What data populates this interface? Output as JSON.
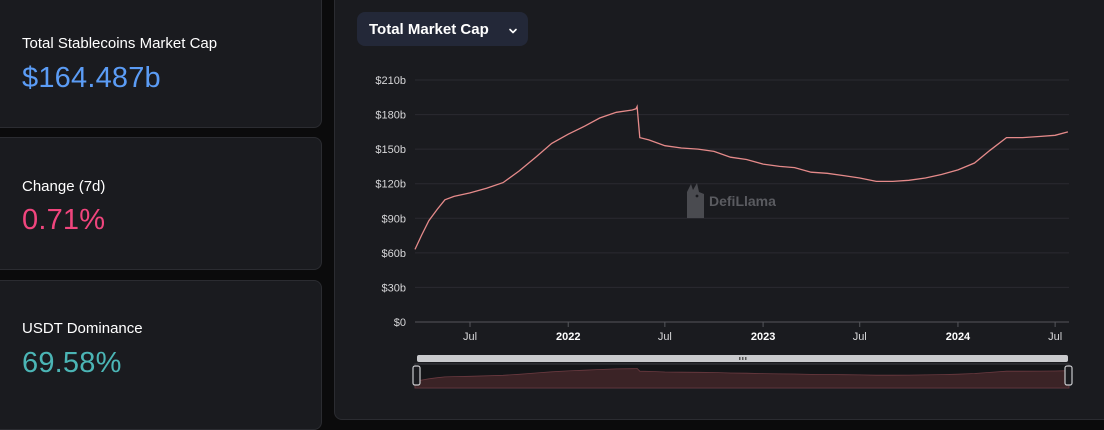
{
  "stats": [
    {
      "label": "Total Stablecoins Market Cap",
      "value": "$164.487b",
      "color": "#5b9cf5"
    },
    {
      "label": "Change (7d)",
      "value": "0.71%",
      "color": "#f0457d"
    },
    {
      "label": "USDT Dominance",
      "value": "69.58%",
      "color": "#4bb5b5"
    }
  ],
  "dropdown": {
    "label": "Total Market Cap",
    "icon": "chevron-down-icon"
  },
  "watermark": {
    "text": "DefiLlama",
    "icon": "llama-logo-icon"
  },
  "colors": {
    "line": "#e58a8a",
    "brush_fill": "#3b2326",
    "background": "#1a1b1f"
  },
  "chart_data": {
    "type": "line",
    "title": "",
    "xlabel": "",
    "ylabel": "",
    "ylim": [
      0,
      210
    ],
    "yunit": "billion USD",
    "y_ticks": [
      "$0",
      "$30b",
      "$60b",
      "$90b",
      "$120b",
      "$150b",
      "$180b",
      "$210b"
    ],
    "x_ticks": [
      {
        "label": "Jul",
        "date": "2021-07-01"
      },
      {
        "label": "2022",
        "date": "2022-01-01",
        "bold": true
      },
      {
        "label": "Jul",
        "date": "2022-07-01"
      },
      {
        "label": "2023",
        "date": "2023-01-01",
        "bold": true
      },
      {
        "label": "Jul",
        "date": "2023-07-01"
      },
      {
        "label": "2024",
        "date": "2024-01-01",
        "bold": true
      },
      {
        "label": "Jul",
        "date": "2024-07-01"
      }
    ],
    "xlim": [
      "2021-03-20",
      "2024-07-27"
    ],
    "grid": true,
    "legend": "none",
    "series": [
      {
        "x": [
          "2021-03-20",
          "2021-04-01",
          "2021-04-15",
          "2021-05-01",
          "2021-05-15",
          "2021-06-01",
          "2021-07-01",
          "2021-08-01",
          "2021-09-01",
          "2021-10-01",
          "2021-11-01",
          "2021-12-01",
          "2022-01-01",
          "2022-02-01",
          "2022-03-01",
          "2022-04-01",
          "2022-05-01",
          "2022-05-08",
          "2022-05-10",
          "2022-05-15",
          "2022-06-01",
          "2022-07-01",
          "2022-08-01",
          "2022-09-01",
          "2022-10-01",
          "2022-11-01",
          "2022-12-01",
          "2023-01-01",
          "2023-02-01",
          "2023-03-01",
          "2023-04-01",
          "2023-05-01",
          "2023-06-01",
          "2023-07-01",
          "2023-08-01",
          "2023-09-01",
          "2023-10-01",
          "2023-11-01",
          "2023-12-01",
          "2024-01-01",
          "2024-02-01",
          "2024-03-01",
          "2024-04-01",
          "2024-05-01",
          "2024-06-01",
          "2024-07-01",
          "2024-07-25"
        ],
        "y": [
          63,
          75,
          88,
          98,
          106,
          109,
          112,
          116,
          121,
          131,
          143,
          155,
          163,
          170,
          177,
          182,
          184,
          185,
          187,
          160,
          158,
          153,
          151,
          150,
          148,
          143,
          141,
          137,
          135,
          134,
          130,
          129,
          127,
          125,
          122,
          122,
          123,
          125,
          128,
          132,
          138,
          149,
          160,
          160,
          161,
          162,
          165
        ]
      }
    ]
  }
}
